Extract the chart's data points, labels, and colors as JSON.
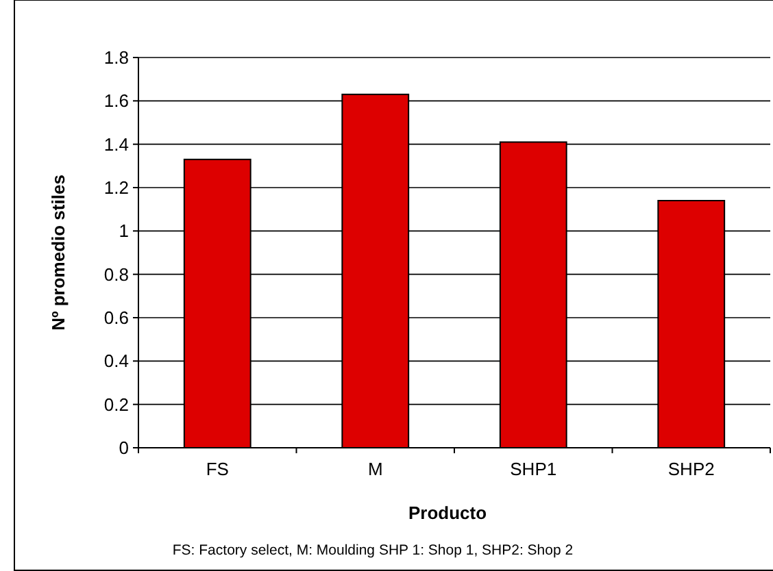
{
  "chart_data": {
    "type": "bar",
    "categories": [
      "FS",
      "M",
      "SHP1",
      "SHP2"
    ],
    "values": [
      1.33,
      1.63,
      1.41,
      1.14
    ],
    "color": "#dd0000",
    "ylim": [
      0,
      1.8
    ],
    "yticks": [
      0,
      0.2,
      0.4,
      0.6,
      0.8,
      1,
      1.2,
      1.4,
      1.6,
      1.8
    ],
    "grid": "y",
    "xlabel": "Producto",
    "ylabel": "Nº promedio stiles",
    "annotations": [
      "FS: Factory select, M: Moulding SHP 1: Shop 1, SHP2: Shop 2"
    ]
  }
}
